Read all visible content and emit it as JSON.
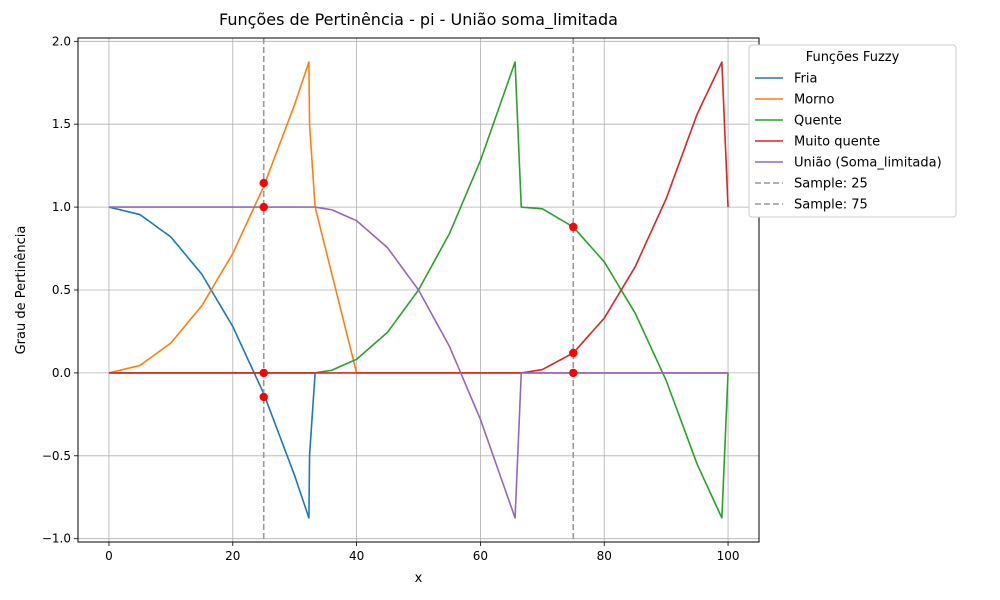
{
  "chart_data": {
    "type": "line",
    "title": "Funções de Pertinência - pi - União soma_limitada",
    "xlabel": "x",
    "ylabel": "Grau de Pertinência",
    "xlim": [
      -5,
      105
    ],
    "ylim": [
      -1.02,
      2.02
    ],
    "xticks": [
      0,
      20,
      40,
      60,
      80,
      100
    ],
    "xtick_labels": [
      "0",
      "20",
      "40",
      "60",
      "80",
      "100"
    ],
    "yticks": [
      -1.0,
      -0.5,
      0.0,
      0.5,
      1.0,
      1.5,
      2.0
    ],
    "ytick_labels": [
      "−1.0",
      "−0.5",
      "0.0",
      "0.5",
      "1.0",
      "1.5",
      "2.0"
    ],
    "grid": true,
    "legend": {
      "title": "Funções Fuzzy",
      "placement": "outside-top-right"
    },
    "series": [
      {
        "name": "Fria",
        "color": "#1f77b4",
        "x": [
          0,
          5,
          10,
          15,
          20,
          25,
          30,
          32.3,
          32.4,
          33.3
        ],
        "y": [
          1.0,
          0.955,
          0.82,
          0.595,
          0.28,
          -0.125,
          -0.62,
          -0.875,
          -0.5,
          0.0
        ]
      },
      {
        "name": "Morno",
        "color": "#ff7f0e",
        "x": [
          0,
          5,
          10,
          15,
          20,
          25,
          30,
          32.3,
          32.4,
          33.3,
          40,
          60,
          80,
          100
        ],
        "y": [
          0.0,
          0.045,
          0.18,
          0.405,
          0.72,
          1.125,
          1.62,
          1.875,
          1.5,
          1.0,
          0.0,
          0.0,
          0.0,
          0.0
        ]
      },
      {
        "name": "Quente",
        "color": "#2ca02c",
        "x": [
          0,
          33.3,
          36,
          40,
          45,
          50,
          55,
          60,
          65.6,
          66.6,
          70,
          75,
          80,
          85,
          90,
          95,
          99,
          100
        ],
        "y": [
          0.0,
          0.0,
          0.016,
          0.082,
          0.245,
          0.5,
          0.84,
          1.28,
          1.875,
          1.0,
          0.99,
          0.88,
          0.67,
          0.36,
          -0.045,
          -0.55,
          -0.875,
          0.0
        ]
      },
      {
        "name": "Muito quente",
        "color": "#d62728",
        "x": [
          0,
          66.7,
          70,
          75,
          80,
          85,
          90,
          95,
          99,
          100
        ],
        "y": [
          0.0,
          0.0,
          0.02,
          0.12,
          0.33,
          0.64,
          1.05,
          1.56,
          1.875,
          1.0
        ]
      },
      {
        "name": "União (Soma_limitada)",
        "color": "#9467bd",
        "x": [
          0,
          33.3,
          36,
          40,
          45,
          50,
          55,
          60,
          65.6,
          66.6,
          100
        ],
        "y": [
          1.0,
          1.0,
          0.984,
          0.918,
          0.755,
          0.5,
          0.16,
          -0.28,
          -0.875,
          0.0,
          0.0
        ]
      }
    ],
    "samples": [
      {
        "name": "Sample: 25",
        "x": 25,
        "color": "#999999"
      },
      {
        "name": "Sample: 75",
        "x": 75,
        "color": "#999999"
      }
    ],
    "sample_points": {
      "color": "#ff0000",
      "points": [
        {
          "x": 25,
          "y": 1.145
        },
        {
          "x": 25,
          "y": 1.0
        },
        {
          "x": 25,
          "y": 0.0
        },
        {
          "x": 25,
          "y": -0.145
        },
        {
          "x": 75,
          "y": 0.88
        },
        {
          "x": 75,
          "y": 0.12
        },
        {
          "x": 75,
          "y": 0.0
        }
      ]
    }
  }
}
